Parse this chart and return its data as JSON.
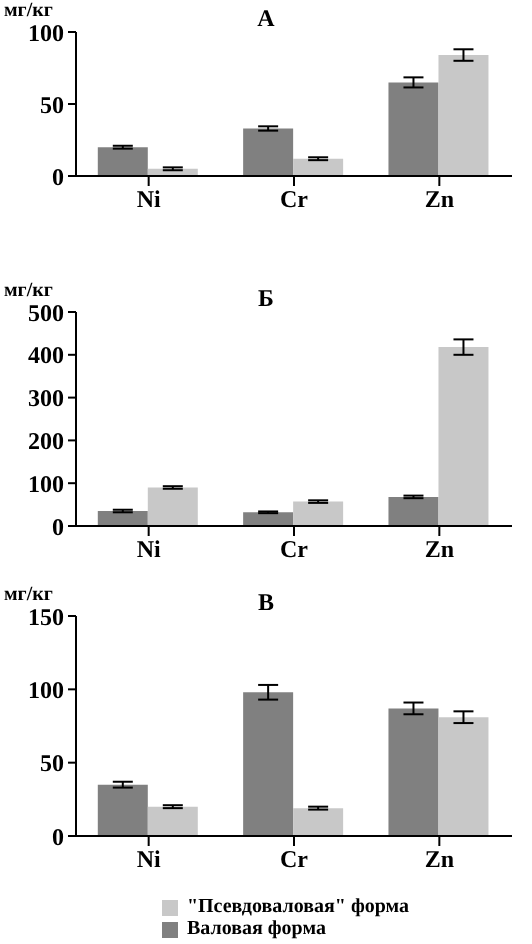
{
  "chart_data": [
    {
      "type": "bar",
      "title": "А",
      "ylabel": "мг/кг",
      "categories": [
        "Ni",
        "Cr",
        "Zn"
      ],
      "series": [
        {
          "color": "#808080",
          "values": [
            20,
            33,
            65
          ],
          "errors": [
            1,
            1.5,
            3.5
          ]
        },
        {
          "color": "#c8c8c8",
          "values": [
            5,
            12,
            84
          ],
          "errors": [
            1,
            1,
            4
          ]
        }
      ],
      "ylim": [
        0,
        100
      ],
      "yticks": [
        0,
        50,
        100
      ],
      "grid": false,
      "legend": false
    },
    {
      "type": "bar",
      "title": "Б",
      "ylabel": "мг/кг",
      "categories": [
        "Ni",
        "Cr",
        "Zn"
      ],
      "series": [
        {
          "color": "#808080",
          "values": [
            35,
            32,
            68
          ],
          "errors": [
            3,
            2,
            3
          ]
        },
        {
          "color": "#c8c8c8",
          "values": [
            90,
            57,
            418
          ],
          "errors": [
            3,
            3,
            18
          ]
        }
      ],
      "ylim": [
        0,
        500
      ],
      "yticks": [
        0,
        100,
        200,
        300,
        400,
        500
      ],
      "grid": false,
      "legend": false
    },
    {
      "type": "bar",
      "title": "В",
      "ylabel": "мг/кг",
      "categories": [
        "Ni",
        "Cr",
        "Zn"
      ],
      "series": [
        {
          "name": "Валовая форма",
          "color": "#808080",
          "values": [
            35,
            98,
            87
          ],
          "errors": [
            2,
            5,
            4
          ]
        },
        {
          "name": "\"Псевдоваловая\" форма",
          "color": "#c8c8c8",
          "values": [
            20,
            19,
            81
          ],
          "errors": [
            1,
            1,
            4
          ]
        }
      ],
      "ylim": [
        0,
        150
      ],
      "yticks": [
        0,
        50,
        100,
        150
      ],
      "grid": false,
      "legend": "bottom"
    }
  ]
}
